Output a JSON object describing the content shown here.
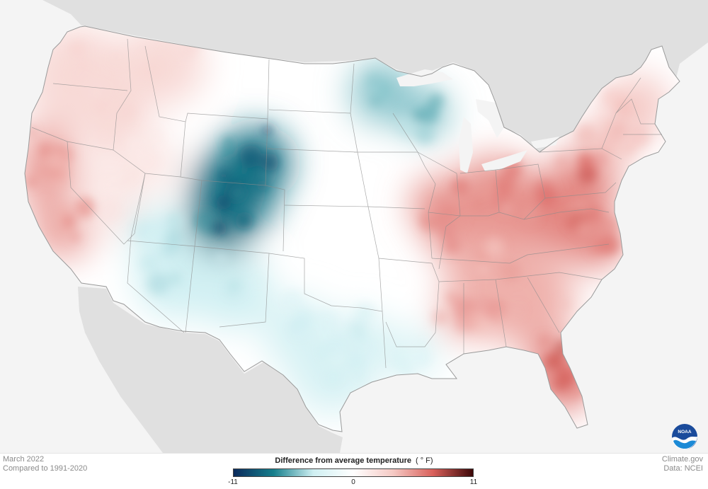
{
  "map": {
    "title": "Difference from average temperature",
    "unit": "( ° F)",
    "period": "March 2022",
    "baseline": "Compared to 1991-2020",
    "credit_site": "Climate.gov",
    "credit_data": "Data: NCEI",
    "logo_text": "NOAA",
    "legend": {
      "min_label": "-11",
      "mid_label": "0",
      "max_label": "11",
      "min": -11,
      "max": 11,
      "colors": [
        "#0b2a5c",
        "#167f8c",
        "#cfeff2",
        "#ffffff",
        "#f5c9c4",
        "#d9605b",
        "#3d0808"
      ]
    },
    "colors": {
      "background": "#f4f4f4",
      "land_outside": "#dcdcdc",
      "water": "#f4f4f4",
      "state_lines": "#8c8c8c"
    },
    "regions": [
      {
        "name": "Pacific Northwest",
        "anomaly": 2.5
      },
      {
        "name": "California coast",
        "anomaly": 5
      },
      {
        "name": "Great Basin",
        "anomaly": 1.5
      },
      {
        "name": "Colorado Rockies",
        "anomaly": -8
      },
      {
        "name": "Southwest",
        "anomaly": -3.5
      },
      {
        "name": "Texas",
        "anomaly": -3
      },
      {
        "name": "Northern Minnesota",
        "anomaly": -5
      },
      {
        "name": "Ohio Valley",
        "anomaly": 5.5
      },
      {
        "name": "Mid-Atlantic",
        "anomaly": 6
      },
      {
        "name": "Southeast",
        "anomaly": 4.5
      },
      {
        "name": "Florida",
        "anomaly": 6.5
      },
      {
        "name": "New England",
        "anomaly": 3.5
      },
      {
        "name": "Louisiana",
        "anomaly": -2.5
      }
    ]
  }
}
